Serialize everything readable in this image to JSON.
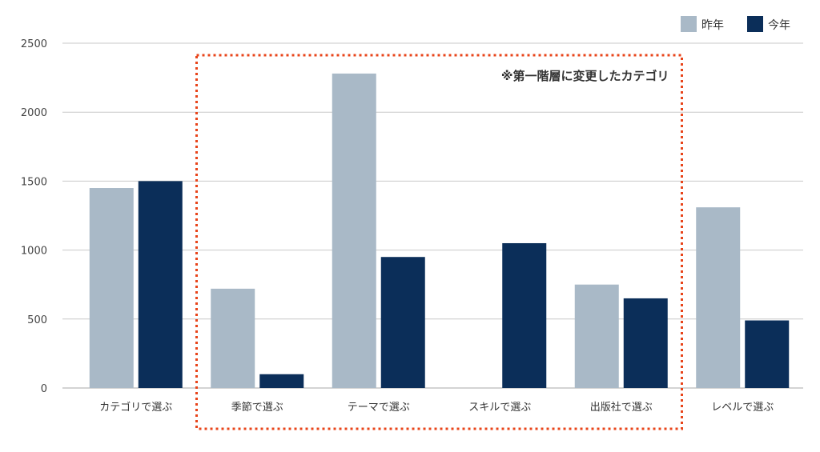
{
  "chart_data": {
    "type": "bar",
    "categories": [
      "カテゴリで選ぶ",
      "季節で選ぶ",
      "テーマで選ぶ",
      "スキルで選ぶ",
      "出版社で選ぶ",
      "レベルで選ぶ"
    ],
    "series": [
      {
        "name": "昨年",
        "values": [
          1450,
          720,
          2280,
          null,
          750,
          1310
        ],
        "color": "#a9b9c7"
      },
      {
        "name": "今年",
        "values": [
          1500,
          100,
          950,
          1050,
          650,
          490
        ],
        "color": "#0b2e59"
      }
    ],
    "title": "",
    "xlabel": "",
    "ylabel": "",
    "ylim": [
      0,
      2500
    ],
    "yticks": [
      0,
      500,
      1000,
      1500,
      2000,
      2500
    ],
    "grid": true,
    "legend": "top-right",
    "annotation": {
      "text": "※第一階層に変更したカテゴリ",
      "first_category_index": 1,
      "last_category_index": 4,
      "border_color": "#e8441a"
    }
  }
}
